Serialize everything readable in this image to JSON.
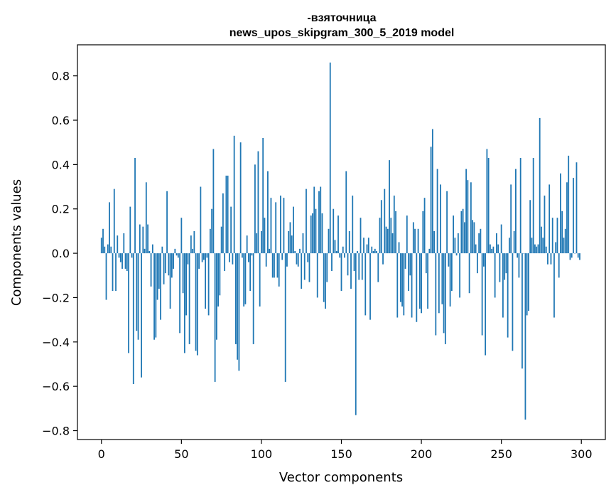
{
  "chart_data": {
    "type": "bar",
    "title": "-взяточница",
    "subtitle": "news_upos_skipgram_300_5_2019 model",
    "xlabel": "Vector components",
    "ylabel": "Components values",
    "xlim": [
      -15,
      315
    ],
    "ylim": [
      -0.84,
      0.94
    ],
    "xticks": [
      0,
      50,
      100,
      150,
      200,
      250,
      300
    ],
    "xtick_labels": [
      "0",
      "50",
      "100",
      "150",
      "200",
      "250",
      "300"
    ],
    "yticks": [
      -0.8,
      -0.6,
      -0.4,
      -0.2,
      0.0,
      0.2,
      0.4,
      0.6,
      0.8
    ],
    "ytick_labels": [
      "−0.8",
      "−0.6",
      "−0.4",
      "−0.2",
      "0.0",
      "0.2",
      "0.4",
      "0.6",
      "0.8"
    ],
    "grid": false,
    "bar_color": "#1f77b4",
    "x": [
      0,
      1,
      2,
      3,
      4,
      5,
      6,
      7,
      8,
      9,
      10,
      11,
      12,
      13,
      14,
      15,
      16,
      17,
      18,
      19,
      20,
      21,
      22,
      23,
      24,
      25,
      26,
      27,
      28,
      29,
      30,
      31,
      32,
      33,
      34,
      35,
      36,
      37,
      38,
      39,
      40,
      41,
      42,
      43,
      44,
      45,
      46,
      47,
      48,
      49,
      50,
      51,
      52,
      53,
      54,
      55,
      56,
      57,
      58,
      59,
      60,
      61,
      62,
      63,
      64,
      65,
      66,
      67,
      68,
      69,
      70,
      71,
      72,
      73,
      74,
      75,
      76,
      77,
      78,
      79,
      80,
      81,
      82,
      83,
      84,
      85,
      86,
      87,
      88,
      89,
      90,
      91,
      92,
      93,
      94,
      95,
      96,
      97,
      98,
      99,
      100,
      101,
      102,
      103,
      104,
      105,
      106,
      107,
      108,
      109,
      110,
      111,
      112,
      113,
      114,
      115,
      116,
      117,
      118,
      119,
      120,
      121,
      122,
      123,
      124,
      125,
      126,
      127,
      128,
      129,
      130,
      131,
      132,
      133,
      134,
      135,
      136,
      137,
      138,
      139,
      140,
      141,
      142,
      143,
      144,
      145,
      146,
      147,
      148,
      149,
      150,
      151,
      152,
      153,
      154,
      155,
      156,
      157,
      158,
      159,
      160,
      161,
      162,
      163,
      164,
      165,
      166,
      167,
      168,
      169,
      170,
      171,
      172,
      173,
      174,
      175,
      176,
      177,
      178,
      179,
      180,
      181,
      182,
      183,
      184,
      185,
      186,
      187,
      188,
      189,
      190,
      191,
      192,
      193,
      194,
      195,
      196,
      197,
      198,
      199,
      200,
      201,
      202,
      203,
      204,
      205,
      206,
      207,
      208,
      209,
      210,
      211,
      212,
      213,
      214,
      215,
      216,
      217,
      218,
      219,
      220,
      221,
      222,
      223,
      224,
      225,
      226,
      227,
      228,
      229,
      230,
      231,
      232,
      233,
      234,
      235,
      236,
      237,
      238,
      239,
      240,
      241,
      242,
      243,
      244,
      245,
      246,
      247,
      248,
      249,
      250,
      251,
      252,
      253,
      254,
      255,
      256,
      257,
      258,
      259,
      260,
      261,
      262,
      263,
      264,
      265,
      266,
      267,
      268,
      269,
      270,
      271,
      272,
      273,
      274,
      275,
      276,
      277,
      278,
      279,
      280,
      281,
      282,
      283,
      284,
      285,
      286,
      287,
      288,
      289,
      290,
      291,
      292,
      293,
      294,
      295,
      296,
      297,
      298,
      299
    ],
    "values": [
      0.07,
      0.11,
      0.03,
      -0.21,
      0.04,
      0.23,
      0.03,
      -0.17,
      0.29,
      -0.17,
      0.08,
      -0.02,
      -0.04,
      -0.07,
      0.09,
      -0.07,
      -0.08,
      -0.45,
      0.21,
      -0.02,
      -0.59,
      0.43,
      -0.35,
      -0.39,
      0.13,
      -0.56,
      0.12,
      0.02,
      0.32,
      0.13,
      0.01,
      -0.15,
      0.04,
      -0.39,
      -0.38,
      -0.21,
      -0.16,
      -0.3,
      0.03,
      -0.14,
      -0.09,
      0.28,
      -0.1,
      -0.25,
      -0.11,
      -0.07,
      0.02,
      -0.01,
      -0.02,
      -0.36,
      0.16,
      -0.18,
      -0.45,
      -0.28,
      -0.05,
      -0.41,
      0.08,
      0.02,
      0.1,
      -0.44,
      -0.46,
      -0.07,
      0.3,
      -0.04,
      -0.03,
      -0.25,
      -0.02,
      -0.28,
      0.11,
      0.2,
      0.47,
      -0.58,
      -0.39,
      -0.24,
      -0.19,
      0.12,
      0.27,
      -0.08,
      0.35,
      0.35,
      -0.04,
      0.21,
      -0.05,
      0.53,
      -0.41,
      -0.48,
      -0.53,
      0.5,
      -0.02,
      -0.24,
      -0.23,
      0.08,
      -0.04,
      -0.17,
      -0.01,
      -0.41,
      0.4,
      0.09,
      0.46,
      -0.24,
      0.1,
      0.52,
      0.16,
      -0.06,
      0.37,
      0.02,
      0.25,
      -0.11,
      -0.11,
      0.23,
      -0.11,
      -0.15,
      0.26,
      -0.03,
      0.25,
      -0.58,
      -0.06,
      0.1,
      0.14,
      0.08,
      0.21,
      0.01,
      -0.05,
      -0.06,
      0.02,
      -0.16,
      0.09,
      -0.12,
      0.29,
      -0.04,
      -0.13,
      0.17,
      0.18,
      0.3,
      0.2,
      -0.2,
      0.28,
      0.3,
      0.18,
      -0.22,
      -0.25,
      -0.13,
      0.11,
      0.86,
      -0.08,
      0.2,
      0.06,
      0.01,
      0.17,
      -0.02,
      -0.17,
      0.03,
      -0.02,
      0.37,
      -0.1,
      0.1,
      -0.16,
      0.26,
      -0.08,
      -0.73,
      0.01,
      -0.12,
      0.16,
      -0.12,
      0.07,
      -0.28,
      0.04,
      0.07,
      -0.3,
      0.03,
      0.01,
      0.02,
      0.01,
      -0.13,
      0.16,
      0.24,
      -0.05,
      0.29,
      0.12,
      0.11,
      0.42,
      0.16,
      0.09,
      0.26,
      0.19,
      -0.29,
      0.05,
      -0.22,
      -0.24,
      -0.28,
      -0.07,
      0.17,
      -0.17,
      -0.1,
      -0.29,
      0.14,
      0.11,
      -0.31,
      0.11,
      -0.25,
      -0.27,
      0.19,
      0.25,
      -0.09,
      -0.25,
      0.02,
      0.48,
      0.56,
      0.1,
      -0.37,
      0.38,
      -0.27,
      0.31,
      -0.23,
      -0.36,
      -0.41,
      0.28,
      -0.06,
      -0.24,
      -0.17,
      0.17,
      0.07,
      -0.01,
      0.09,
      -0.2,
      0.19,
      0.2,
      0.14,
      0.38,
      0.33,
      -0.18,
      0.32,
      0.15,
      0.14,
      0.04,
      -0.09,
      0.09,
      0.11,
      -0.37,
      -0.06,
      -0.46,
      0.47,
      0.43,
      0.04,
      0.02,
      0.03,
      -0.2,
      0.09,
      0.04,
      -0.13,
      0.13,
      -0.29,
      -0.12,
      -0.09,
      -0.38,
      0.07,
      0.31,
      -0.44,
      0.1,
      0.38,
      -0.02,
      -0.11,
      0.43,
      -0.52,
      0.0,
      -0.75,
      -0.28,
      -0.26,
      0.24,
      0.07,
      0.43,
      0.04,
      0.03,
      0.04,
      0.61,
      0.12,
      0.07,
      0.26,
      0.03,
      -0.05,
      0.31,
      -0.05,
      0.16,
      -0.29,
      0.05,
      0.16,
      -0.11,
      0.36,
      0.19,
      0.07,
      0.11,
      0.32,
      0.44,
      -0.03,
      -0.02,
      0.34,
      0.0,
      0.41,
      -0.02,
      -0.03
    ]
  }
}
